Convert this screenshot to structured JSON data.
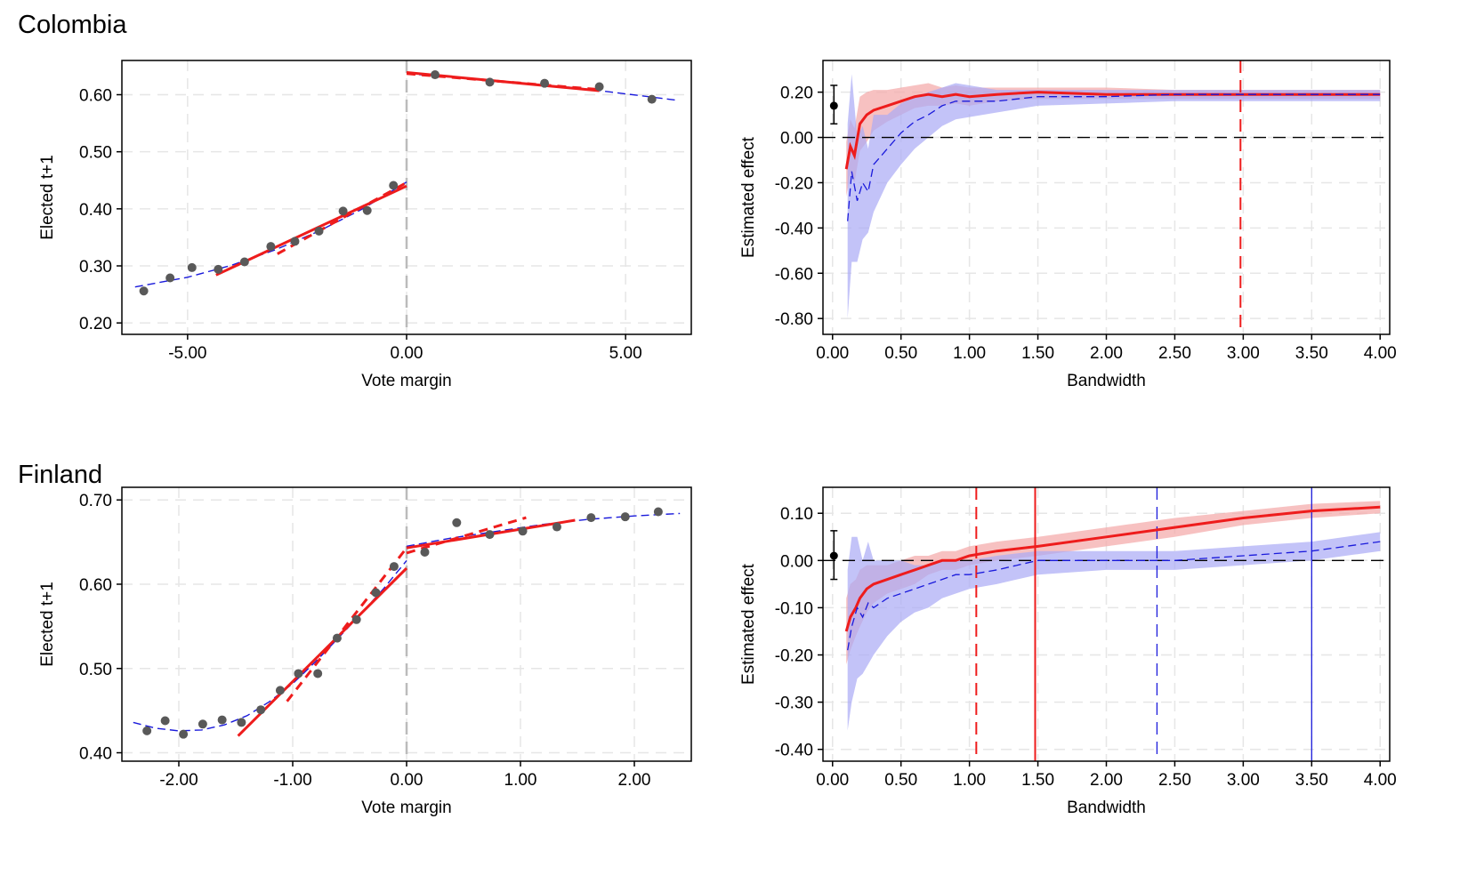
{
  "sections": [
    {
      "title": "Colombia"
    },
    {
      "title": "Finland"
    }
  ],
  "chart_data": [
    {
      "id": "colombia-rd",
      "section": "Colombia",
      "type": "scatter",
      "xlabel": "Vote margin",
      "ylabel": "Elected t+1",
      "xlim": [
        -6.5,
        6.5
      ],
      "ylim": [
        0.18,
        0.66
      ],
      "xticks": [
        -5,
        0,
        5
      ],
      "xtick_labels": [
        "-5.00",
        "0.00",
        "5.00"
      ],
      "yticks": [
        0.2,
        0.3,
        0.4,
        0.5,
        0.6
      ],
      "ytick_labels": [
        "0.20",
        "0.30",
        "0.40",
        "0.50",
        "0.60"
      ],
      "grid": true,
      "cutoff": 0,
      "colors": {
        "points": "#595959",
        "fit_red": "#ee1c1c",
        "fit_blue": "#1a1adb",
        "cutoff": "#bbbbbb"
      },
      "points": [
        {
          "x": -6.0,
          "y": 0.256
        },
        {
          "x": -5.4,
          "y": 0.279
        },
        {
          "x": -4.9,
          "y": 0.297
        },
        {
          "x": -4.3,
          "y": 0.294
        },
        {
          "x": -3.7,
          "y": 0.307
        },
        {
          "x": -3.1,
          "y": 0.334
        },
        {
          "x": -2.55,
          "y": 0.343
        },
        {
          "x": -2.0,
          "y": 0.361
        },
        {
          "x": -1.45,
          "y": 0.396
        },
        {
          "x": -0.9,
          "y": 0.397
        },
        {
          "x": -0.3,
          "y": 0.441
        },
        {
          "x": 0.65,
          "y": 0.635
        },
        {
          "x": 1.9,
          "y": 0.622
        },
        {
          "x": 3.15,
          "y": 0.62
        },
        {
          "x": 4.4,
          "y": 0.614
        },
        {
          "x": 5.6,
          "y": 0.592
        }
      ],
      "series": [
        {
          "style": "blue-dashed",
          "x": [
            -6.2,
            -5.0,
            -4.0,
            -3.0,
            -2.0,
            -1.0,
            0.0
          ],
          "y": [
            0.263,
            0.28,
            0.301,
            0.328,
            0.361,
            0.4,
            0.447
          ]
        },
        {
          "style": "blue-dashed",
          "x": [
            0.0,
            2.0,
            4.0,
            6.2
          ],
          "y": [
            0.637,
            0.625,
            0.611,
            0.59
          ]
        },
        {
          "style": "red-solid",
          "x": [
            -4.35,
            0.0
          ],
          "y": [
            0.284,
            0.44
          ]
        },
        {
          "style": "red-dashed",
          "x": [
            -2.95,
            0.0
          ],
          "y": [
            0.321,
            0.446
          ]
        },
        {
          "style": "red-solid",
          "x": [
            0.0,
            4.4
          ],
          "y": [
            0.639,
            0.607
          ]
        },
        {
          "style": "red-dashed",
          "x": [
            0.0,
            4.4
          ],
          "y": [
            0.637,
            0.609
          ]
        }
      ]
    },
    {
      "id": "colombia-bandwidth",
      "section": "Colombia",
      "type": "line",
      "xlabel": "Bandwidth",
      "ylabel": "Estimated effect",
      "xlim": [
        -0.07,
        4.07
      ],
      "ylim": [
        -0.87,
        0.34
      ],
      "xticks": [
        0,
        0.5,
        1,
        1.5,
        2,
        2.5,
        3,
        3.5,
        4
      ],
      "xtick_labels": [
        "0.00",
        "0.50",
        "1.00",
        "1.50",
        "2.00",
        "2.50",
        "3.00",
        "3.50",
        "4.00"
      ],
      "yticks": [
        -0.8,
        -0.6,
        -0.4,
        -0.2,
        0,
        0.2
      ],
      "ytick_labels": [
        "-0.80",
        "-0.60",
        "-0.40",
        "-0.20",
        "0.00",
        "0.20"
      ],
      "grid": true,
      "colors": {
        "red": "#ee1c1c",
        "red_band": "#f4a6a6",
        "blue": "#1a1adb",
        "blue_band": "#a9a9f5"
      },
      "point_estimate": {
        "x": 0.01,
        "y": 0.14,
        "lo": 0.06,
        "hi": 0.23
      },
      "vlines": [
        {
          "x": 2.98,
          "color": "red",
          "style": "dashed"
        }
      ],
      "series": [
        {
          "style": "red-solid",
          "x": [
            0.1,
            0.13,
            0.16,
            0.2,
            0.25,
            0.3,
            0.4,
            0.5,
            0.6,
            0.7,
            0.8,
            0.9,
            1.0,
            1.2,
            1.5,
            2.0,
            2.5,
            3.0,
            3.5,
            4.0
          ],
          "y": [
            -0.14,
            -0.04,
            -0.08,
            0.06,
            0.1,
            0.12,
            0.14,
            0.16,
            0.18,
            0.19,
            0.18,
            0.19,
            0.18,
            0.19,
            0.2,
            0.19,
            0.19,
            0.19,
            0.19,
            0.19
          ],
          "lo": [
            -0.26,
            -0.16,
            -0.2,
            -0.06,
            -0.02,
            0.03,
            0.07,
            0.1,
            0.13,
            0.14,
            0.14,
            0.15,
            0.14,
            0.16,
            0.17,
            0.17,
            0.17,
            0.17,
            0.17,
            0.17
          ],
          "hi": [
            -0.02,
            0.08,
            0.04,
            0.18,
            0.2,
            0.21,
            0.21,
            0.22,
            0.23,
            0.24,
            0.22,
            0.23,
            0.22,
            0.22,
            0.22,
            0.22,
            0.21,
            0.21,
            0.21,
            0.21
          ]
        },
        {
          "style": "blue-dashed",
          "x": [
            0.11,
            0.14,
            0.18,
            0.22,
            0.26,
            0.3,
            0.4,
            0.5,
            0.6,
            0.7,
            0.8,
            0.9,
            1.0,
            1.2,
            1.5,
            2.0,
            2.5,
            3.0,
            3.5,
            4.0
          ],
          "y": [
            -0.37,
            -0.15,
            -0.28,
            -0.2,
            -0.24,
            -0.12,
            -0.05,
            0.02,
            0.07,
            0.1,
            0.14,
            0.16,
            0.16,
            0.16,
            0.18,
            0.18,
            0.19,
            0.19,
            0.19,
            0.19
          ],
          "lo": [
            -0.8,
            -0.55,
            -0.55,
            -0.45,
            -0.42,
            -0.33,
            -0.2,
            -0.12,
            -0.05,
            0.0,
            0.05,
            0.08,
            0.09,
            0.11,
            0.14,
            0.15,
            0.16,
            0.16,
            0.16,
            0.16
          ],
          "hi": [
            0.06,
            0.28,
            0.0,
            0.05,
            -0.05,
            0.1,
            0.1,
            0.15,
            0.18,
            0.2,
            0.22,
            0.24,
            0.23,
            0.21,
            0.21,
            0.21,
            0.21,
            0.21,
            0.21,
            0.21
          ]
        }
      ]
    },
    {
      "id": "finland-rd",
      "section": "Finland",
      "type": "scatter",
      "xlabel": "Vote margin",
      "ylabel": "Elected t+1",
      "xlim": [
        -2.5,
        2.5
      ],
      "ylim": [
        0.39,
        0.715
      ],
      "xticks": [
        -2,
        -1,
        0,
        1,
        2
      ],
      "xtick_labels": [
        "-2.00",
        "-1.00",
        "0.00",
        "1.00",
        "2.00"
      ],
      "yticks": [
        0.4,
        0.5,
        0.6,
        0.7
      ],
      "ytick_labels": [
        "0.40",
        "0.50",
        "0.60",
        "0.70"
      ],
      "grid": true,
      "cutoff": 0,
      "colors": {
        "points": "#595959",
        "fit_red": "#ee1c1c",
        "fit_blue": "#1a1adb",
        "cutoff": "#bbbbbb"
      },
      "points": [
        {
          "x": -2.28,
          "y": 0.426
        },
        {
          "x": -2.12,
          "y": 0.438
        },
        {
          "x": -1.96,
          "y": 0.422
        },
        {
          "x": -1.79,
          "y": 0.434
        },
        {
          "x": -1.62,
          "y": 0.439
        },
        {
          "x": -1.45,
          "y": 0.436
        },
        {
          "x": -1.28,
          "y": 0.451
        },
        {
          "x": -1.11,
          "y": 0.474
        },
        {
          "x": -0.95,
          "y": 0.494
        },
        {
          "x": -0.78,
          "y": 0.494
        },
        {
          "x": -0.61,
          "y": 0.536
        },
        {
          "x": -0.44,
          "y": 0.558
        },
        {
          "x": -0.27,
          "y": 0.59
        },
        {
          "x": -0.11,
          "y": 0.621
        },
        {
          "x": 0.16,
          "y": 0.638
        },
        {
          "x": 0.44,
          "y": 0.673
        },
        {
          "x": 0.73,
          "y": 0.659
        },
        {
          "x": 1.02,
          "y": 0.663
        },
        {
          "x": 1.32,
          "y": 0.668
        },
        {
          "x": 1.62,
          "y": 0.679
        },
        {
          "x": 1.92,
          "y": 0.68
        },
        {
          "x": 2.21,
          "y": 0.686
        }
      ],
      "series": [
        {
          "style": "blue-dashed",
          "x": [
            -2.4,
            -2.2,
            -2.0,
            -1.8,
            -1.6,
            -1.4,
            -1.2,
            -1.0,
            -0.8,
            -0.6,
            -0.4,
            -0.2,
            0.0
          ],
          "y": [
            0.436,
            0.429,
            0.426,
            0.427,
            0.433,
            0.444,
            0.461,
            0.482,
            0.508,
            0.536,
            0.565,
            0.595,
            0.628
          ]
        },
        {
          "style": "blue-dashed",
          "x": [
            0.0,
            0.4,
            0.8,
            1.2,
            1.6,
            2.0,
            2.4
          ],
          "y": [
            0.645,
            0.655,
            0.663,
            0.671,
            0.677,
            0.681,
            0.684
          ]
        },
        {
          "style": "red-solid",
          "x": [
            -1.48,
            0.0
          ],
          "y": [
            0.42,
            0.619
          ]
        },
        {
          "style": "red-dashed",
          "x": [
            -1.05,
            0.0
          ],
          "y": [
            0.461,
            0.643
          ]
        },
        {
          "style": "red-solid",
          "x": [
            0.0,
            1.48
          ],
          "y": [
            0.643,
            0.676
          ]
        },
        {
          "style": "red-dashed",
          "x": [
            0.0,
            1.05
          ],
          "y": [
            0.637,
            0.679
          ]
        }
      ]
    },
    {
      "id": "finland-bandwidth",
      "section": "Finland",
      "type": "line",
      "xlabel": "Bandwidth",
      "ylabel": "Estimated effect",
      "xlim": [
        -0.07,
        4.07
      ],
      "ylim": [
        -0.425,
        0.155
      ],
      "xticks": [
        0,
        0.5,
        1,
        1.5,
        2,
        2.5,
        3,
        3.5,
        4
      ],
      "xtick_labels": [
        "0.00",
        "0.50",
        "1.00",
        "1.50",
        "2.00",
        "2.50",
        "3.00",
        "3.50",
        "4.00"
      ],
      "yticks": [
        -0.4,
        -0.3,
        -0.2,
        -0.1,
        0,
        0.1
      ],
      "ytick_labels": [
        "-0.40",
        "-0.30",
        "-0.20",
        "-0.10",
        "0.00",
        "0.10"
      ],
      "grid": true,
      "colors": {
        "red": "#ee1c1c",
        "red_band": "#f4a6a6",
        "blue": "#1a1adb",
        "blue_band": "#a9a9f5"
      },
      "point_estimate": {
        "x": 0.01,
        "y": 0.01,
        "lo": -0.04,
        "hi": 0.063
      },
      "vlines": [
        {
          "x": 1.05,
          "color": "red",
          "style": "dashed"
        },
        {
          "x": 1.48,
          "color": "red",
          "style": "solid"
        },
        {
          "x": 2.37,
          "color": "blue",
          "style": "dashed"
        },
        {
          "x": 3.5,
          "color": "blue",
          "style": "solid"
        }
      ],
      "series": [
        {
          "style": "red-solid",
          "x": [
            0.1,
            0.13,
            0.17,
            0.2,
            0.25,
            0.3,
            0.4,
            0.5,
            0.6,
            0.7,
            0.8,
            0.9,
            1.0,
            1.2,
            1.5,
            2.0,
            2.5,
            3.0,
            3.5,
            4.0
          ],
          "y": [
            -0.15,
            -0.12,
            -0.1,
            -0.08,
            -0.06,
            -0.05,
            -0.04,
            -0.03,
            -0.02,
            -0.01,
            0.0,
            0.0,
            0.01,
            0.02,
            0.03,
            0.05,
            0.07,
            0.09,
            0.105,
            0.113
          ],
          "lo": [
            -0.22,
            -0.19,
            -0.16,
            -0.14,
            -0.11,
            -0.09,
            -0.07,
            -0.06,
            -0.05,
            -0.03,
            -0.02,
            -0.02,
            -0.01,
            0.0,
            0.01,
            0.03,
            0.05,
            0.075,
            0.09,
            0.1
          ],
          "hi": [
            -0.08,
            -0.05,
            -0.04,
            -0.02,
            -0.01,
            -0.01,
            -0.01,
            0.0,
            0.01,
            0.01,
            0.02,
            0.02,
            0.03,
            0.04,
            0.05,
            0.07,
            0.09,
            0.105,
            0.12,
            0.126
          ]
        },
        {
          "style": "blue-dashed",
          "x": [
            0.11,
            0.14,
            0.18,
            0.22,
            0.26,
            0.3,
            0.4,
            0.5,
            0.6,
            0.7,
            0.8,
            0.9,
            1.0,
            1.2,
            1.5,
            2.0,
            2.5,
            3.0,
            3.5,
            4.0
          ],
          "y": [
            -0.19,
            -0.14,
            -0.1,
            -0.12,
            -0.09,
            -0.1,
            -0.08,
            -0.07,
            -0.06,
            -0.05,
            -0.04,
            -0.03,
            -0.03,
            -0.02,
            0.0,
            0.0,
            0.0,
            0.01,
            0.02,
            0.04
          ],
          "lo": [
            -0.36,
            -0.3,
            -0.25,
            -0.24,
            -0.22,
            -0.2,
            -0.16,
            -0.13,
            -0.11,
            -0.1,
            -0.08,
            -0.07,
            -0.06,
            -0.05,
            -0.03,
            -0.02,
            -0.02,
            -0.01,
            0.0,
            0.02
          ],
          "hi": [
            -0.02,
            0.05,
            0.05,
            0.0,
            0.04,
            0.0,
            0.0,
            0.0,
            -0.01,
            -0.01,
            0.0,
            0.0,
            0.0,
            0.01,
            0.02,
            0.02,
            0.02,
            0.03,
            0.04,
            0.06
          ]
        }
      ]
    }
  ]
}
